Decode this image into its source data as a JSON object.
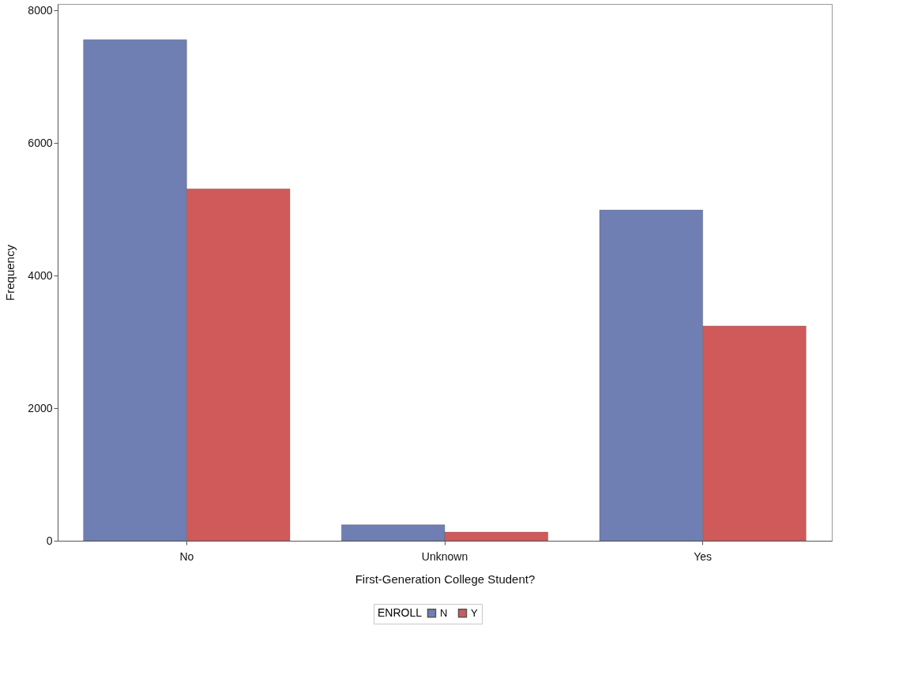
{
  "chart_data": {
    "type": "bar",
    "xlabel": "First-Generation College Student?",
    "ylabel": "Frequency",
    "legend_title": "ENROLL",
    "categories": [
      "No",
      "Unknown",
      "Yes"
    ],
    "series": [
      {
        "name": "N",
        "color": "#6f7fb4",
        "values": [
          7560,
          240,
          4990
        ]
      },
      {
        "name": "Y",
        "color": "#d05a5a",
        "values": [
          5310,
          130,
          3240
        ]
      }
    ],
    "ylim": [
      0,
      8100
    ],
    "yticks": [
      0,
      2000,
      4000,
      6000,
      8000
    ],
    "grid": false,
    "legend": "bottom"
  }
}
